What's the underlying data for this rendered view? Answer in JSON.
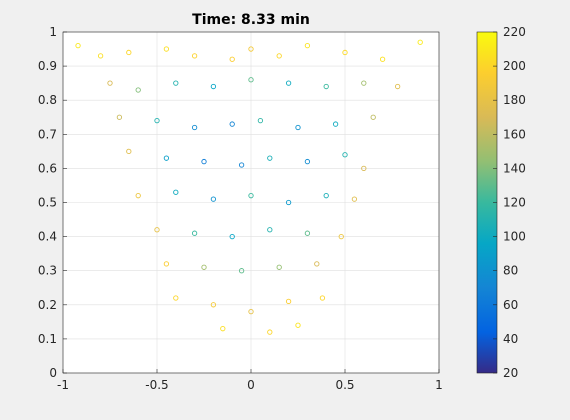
{
  "chart_data": {
    "type": "scatter",
    "title": "Time: 8.33 min",
    "xlim": [
      -1,
      1
    ],
    "ylim": [
      0,
      1
    ],
    "xticks": [
      -1,
      -0.5,
      0,
      0.5,
      1
    ],
    "xtick_labels": [
      "-1",
      "-0.5",
      "0",
      "0.5",
      "1"
    ],
    "yticks": [
      0,
      0.1,
      0.2,
      0.3,
      0.4,
      0.5,
      0.6,
      0.7,
      0.8,
      0.9,
      1
    ],
    "ytick_labels": [
      "0",
      "0.1",
      "0.2",
      "0.3",
      "0.4",
      "0.5",
      "0.6",
      "0.7",
      "0.8",
      "0.9",
      "1"
    ],
    "grid": true,
    "marker": "open-circle",
    "colormap": "parula",
    "colorbar": {
      "range": [
        20,
        220
      ],
      "ticks": [
        20,
        40,
        60,
        80,
        100,
        120,
        140,
        160,
        180,
        200,
        220
      ],
      "tick_labels": [
        "20",
        "40",
        "60",
        "80",
        "100",
        "120",
        "140",
        "160",
        "180",
        "200",
        "220"
      ]
    },
    "points": [
      {
        "x": -0.92,
        "y": 0.96,
        "c": 210
      },
      {
        "x": -0.8,
        "y": 0.93,
        "c": 205
      },
      {
        "x": -0.65,
        "y": 0.94,
        "c": 200
      },
      {
        "x": -0.45,
        "y": 0.95,
        "c": 205
      },
      {
        "x": -0.3,
        "y": 0.93,
        "c": 198
      },
      {
        "x": -0.1,
        "y": 0.92,
        "c": 195
      },
      {
        "x": 0.0,
        "y": 0.95,
        "c": 190
      },
      {
        "x": 0.15,
        "y": 0.93,
        "c": 200
      },
      {
        "x": 0.3,
        "y": 0.96,
        "c": 208
      },
      {
        "x": 0.5,
        "y": 0.94,
        "c": 202
      },
      {
        "x": 0.7,
        "y": 0.92,
        "c": 206
      },
      {
        "x": 0.9,
        "y": 0.97,
        "c": 212
      },
      {
        "x": -0.75,
        "y": 0.85,
        "c": 170
      },
      {
        "x": -0.6,
        "y": 0.83,
        "c": 140
      },
      {
        "x": -0.4,
        "y": 0.85,
        "c": 110
      },
      {
        "x": -0.2,
        "y": 0.84,
        "c": 95
      },
      {
        "x": 0.0,
        "y": 0.86,
        "c": 130
      },
      {
        "x": 0.2,
        "y": 0.85,
        "c": 100
      },
      {
        "x": 0.4,
        "y": 0.84,
        "c": 120
      },
      {
        "x": 0.6,
        "y": 0.85,
        "c": 150
      },
      {
        "x": 0.78,
        "y": 0.84,
        "c": 175
      },
      {
        "x": -0.7,
        "y": 0.75,
        "c": 165
      },
      {
        "x": -0.5,
        "y": 0.74,
        "c": 110
      },
      {
        "x": -0.3,
        "y": 0.72,
        "c": 75
      },
      {
        "x": -0.1,
        "y": 0.73,
        "c": 70
      },
      {
        "x": 0.05,
        "y": 0.74,
        "c": 115
      },
      {
        "x": 0.25,
        "y": 0.72,
        "c": 80
      },
      {
        "x": 0.45,
        "y": 0.73,
        "c": 100
      },
      {
        "x": 0.65,
        "y": 0.75,
        "c": 160
      },
      {
        "x": -0.65,
        "y": 0.65,
        "c": 175
      },
      {
        "x": -0.45,
        "y": 0.63,
        "c": 90
      },
      {
        "x": -0.25,
        "y": 0.62,
        "c": 65
      },
      {
        "x": -0.05,
        "y": 0.61,
        "c": 70
      },
      {
        "x": 0.1,
        "y": 0.63,
        "c": 105
      },
      {
        "x": 0.3,
        "y": 0.62,
        "c": 75
      },
      {
        "x": 0.5,
        "y": 0.64,
        "c": 110
      },
      {
        "x": 0.6,
        "y": 0.6,
        "c": 170
      },
      {
        "x": -0.6,
        "y": 0.52,
        "c": 185
      },
      {
        "x": -0.4,
        "y": 0.53,
        "c": 100
      },
      {
        "x": -0.2,
        "y": 0.51,
        "c": 80
      },
      {
        "x": 0.0,
        "y": 0.52,
        "c": 120
      },
      {
        "x": 0.2,
        "y": 0.5,
        "c": 85
      },
      {
        "x": 0.4,
        "y": 0.52,
        "c": 105
      },
      {
        "x": 0.55,
        "y": 0.51,
        "c": 175
      },
      {
        "x": -0.5,
        "y": 0.42,
        "c": 180
      },
      {
        "x": -0.3,
        "y": 0.41,
        "c": 120
      },
      {
        "x": -0.1,
        "y": 0.4,
        "c": 95
      },
      {
        "x": 0.1,
        "y": 0.42,
        "c": 110
      },
      {
        "x": 0.3,
        "y": 0.41,
        "c": 130
      },
      {
        "x": 0.48,
        "y": 0.4,
        "c": 185
      },
      {
        "x": -0.45,
        "y": 0.32,
        "c": 195
      },
      {
        "x": -0.25,
        "y": 0.31,
        "c": 150
      },
      {
        "x": -0.05,
        "y": 0.3,
        "c": 130
      },
      {
        "x": 0.15,
        "y": 0.31,
        "c": 145
      },
      {
        "x": 0.35,
        "y": 0.32,
        "c": 170
      },
      {
        "x": -0.4,
        "y": 0.22,
        "c": 200
      },
      {
        "x": -0.2,
        "y": 0.2,
        "c": 190
      },
      {
        "x": 0.0,
        "y": 0.18,
        "c": 180
      },
      {
        "x": 0.2,
        "y": 0.21,
        "c": 195
      },
      {
        "x": 0.38,
        "y": 0.22,
        "c": 200
      },
      {
        "x": -0.15,
        "y": 0.13,
        "c": 205
      },
      {
        "x": 0.1,
        "y": 0.12,
        "c": 200
      },
      {
        "x": 0.25,
        "y": 0.14,
        "c": 208
      }
    ]
  }
}
